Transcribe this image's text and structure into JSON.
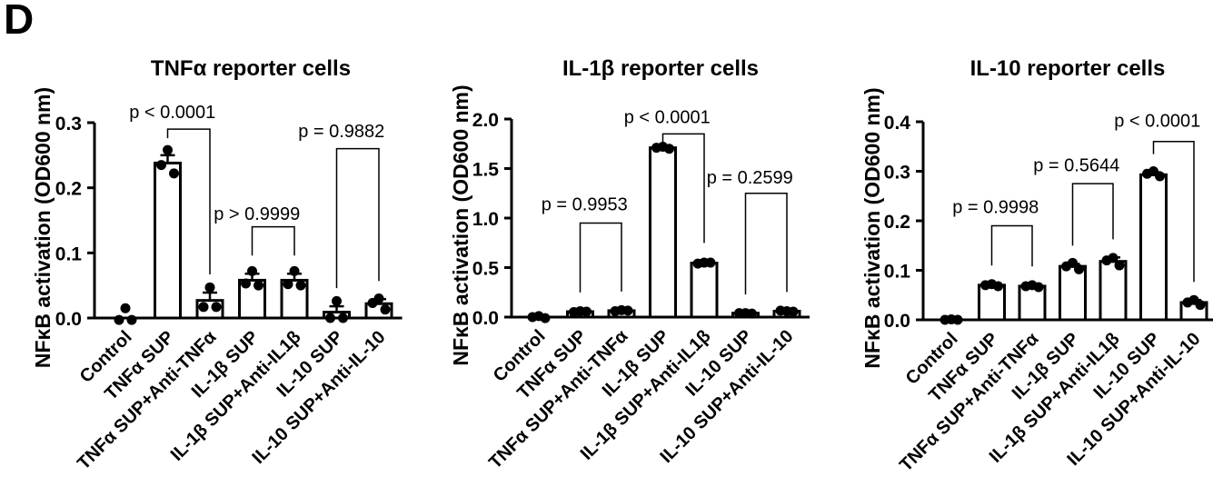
{
  "figure": {
    "panel_letter": "D"
  },
  "chart_data": [
    {
      "type": "bar",
      "title": "TNFα reporter cells",
      "ylabel": "NFκB activation (OD600 nm)",
      "xlabel": "",
      "categories": [
        "Control",
        "TNFα SUP",
        "TNFα SUP+Anti-TNFα",
        "IL-1β SUP",
        "IL-1β SUP+Anti-IL1β",
        "IL-10 SUP",
        "IL-10 SUP+Anti-IL-10"
      ],
      "values": [
        0.0,
        0.238,
        0.027,
        0.058,
        0.058,
        0.009,
        0.022
      ],
      "errors": [
        0.0,
        0.012,
        0.012,
        0.01,
        0.01,
        0.009,
        0.007
      ],
      "points": [
        [
          0.015,
          -0.003,
          -0.003
        ],
        [
          0.258,
          0.235,
          0.222
        ],
        [
          0.047,
          0.017,
          0.017
        ],
        [
          0.072,
          0.053,
          0.05
        ],
        [
          0.072,
          0.052,
          0.05
        ],
        [
          0.026,
          0.0,
          0.0
        ],
        [
          0.03,
          0.023,
          0.013
        ]
      ],
      "ylim": [
        0,
        0.3
      ],
      "yticks": [
        "0.0",
        "0.1",
        "0.2",
        "0.3"
      ],
      "comparisons": [
        {
          "label": "p < 0.0001",
          "from": 1,
          "to": 2,
          "bracket_y": 0.29,
          "text_y": 0.318
        },
        {
          "label": "p > 0.9999",
          "from": 3,
          "to": 4,
          "bracket_y": 0.14,
          "text_y": 0.162
        },
        {
          "label": "p = 0.9882",
          "from": 5,
          "to": 6,
          "bracket_y": 0.26,
          "text_y": 0.289
        }
      ]
    },
    {
      "type": "bar",
      "title": "IL-1β reporter cells",
      "ylabel": "NFκB activation (OD600 nm)",
      "xlabel": "",
      "categories": [
        "Control",
        "TNFα SUP",
        "TNFα SUP+Anti-TNFα",
        "IL-1β SUP",
        "IL-1β SUP+Anti-IL1β",
        "IL-10 SUP",
        "IL-10 SUP+Anti-IL-10"
      ],
      "values": [
        0.0,
        0.055,
        0.065,
        1.71,
        0.545,
        0.04,
        0.06
      ],
      "errors": [
        0.0,
        0.01,
        0.01,
        0.02,
        0.02,
        0.005,
        0.01
      ],
      "points": [
        [
          0.01,
          0.0,
          -0.01
        ],
        [
          0.06,
          0.05,
          0.055
        ],
        [
          0.07,
          0.06,
          0.065
        ],
        [
          1.72,
          1.71,
          1.7
        ],
        [
          0.55,
          0.54,
          0.55
        ],
        [
          0.04,
          0.04,
          0.035
        ],
        [
          0.06,
          0.065,
          0.055
        ]
      ],
      "ylim": [
        0,
        2.0
      ],
      "yticks": [
        "0.0",
        "0.5",
        "1.0",
        "1.5",
        "2.0"
      ],
      "comparisons": [
        {
          "label": "p = 0.9953",
          "from": 1,
          "to": 2,
          "bracket_y": 0.95,
          "text_y": 1.15
        },
        {
          "label": "p < 0.0001",
          "from": 3,
          "to": 4,
          "bracket_y": 1.85,
          "text_y": 2.03
        },
        {
          "label": "p = 0.2599",
          "from": 5,
          "to": 6,
          "bracket_y": 1.25,
          "text_y": 1.42
        }
      ]
    },
    {
      "type": "bar",
      "title": "IL-10 reporter cells",
      "ylabel": "NFκB activation (OD600 nm)",
      "xlabel": "",
      "categories": [
        "Control",
        "TNFα SUP",
        "TNFα SUP+Anti-TNFα",
        "IL-1β SUP",
        "IL-1β SUP+Anti-IL1β",
        "IL-10 SUP",
        "IL-10 SUP+Anti-IL-10"
      ],
      "values": [
        0.0,
        0.07,
        0.068,
        0.108,
        0.118,
        0.293,
        0.035
      ],
      "errors": [
        0.0,
        0.003,
        0.003,
        0.005,
        0.008,
        0.005,
        0.005
      ],
      "points": [
        [
          0.001,
          0.0,
          0.0
        ],
        [
          0.072,
          0.07,
          0.068
        ],
        [
          0.07,
          0.068,
          0.066
        ],
        [
          0.115,
          0.108,
          0.102
        ],
        [
          0.125,
          0.12,
          0.11
        ],
        [
          0.3,
          0.295,
          0.29
        ],
        [
          0.04,
          0.035,
          0.03
        ]
      ],
      "ylim": [
        0,
        0.4
      ],
      "yticks": [
        "0.0",
        "0.1",
        "0.2",
        "0.3",
        "0.4"
      ],
      "comparisons": [
        {
          "label": "p = 0.9998",
          "from": 1,
          "to": 2,
          "bracket_y": 0.19,
          "text_y": 0.23
        },
        {
          "label": "p = 0.5644",
          "from": 3,
          "to": 4,
          "bracket_y": 0.275,
          "text_y": 0.315
        },
        {
          "label": "p < 0.0001",
          "from": 5,
          "to": 6,
          "bracket_y": 0.36,
          "text_y": 0.405
        }
      ]
    }
  ]
}
